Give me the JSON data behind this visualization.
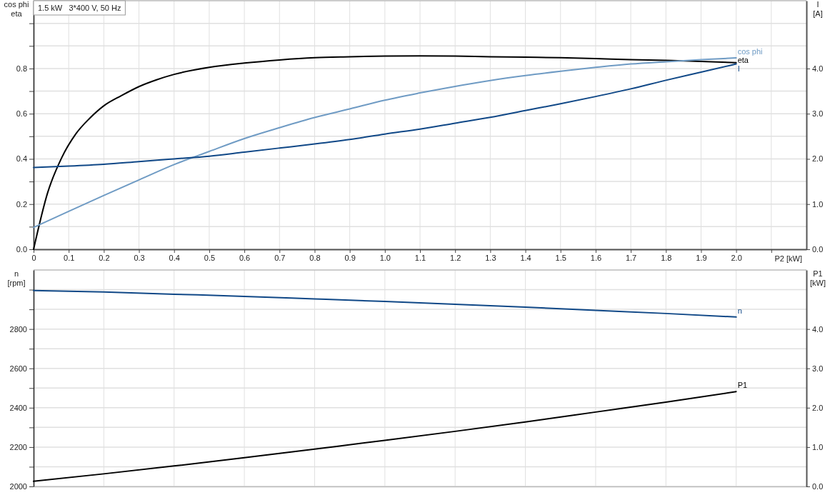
{
  "chart_data": [
    {
      "type": "line",
      "title": "1.5 kW   3*400 V, 50 Hz",
      "xlabel": "P2 [kW]",
      "ylabel": "cos phi\neta",
      "y2label": "I\n[A]",
      "xlim": [
        0,
        2.2
      ],
      "xticks": [
        0,
        0.1,
        0.2,
        0.3,
        0.4,
        0.5,
        0.6,
        0.7,
        0.8,
        0.9,
        {
          "value": 1,
          "label": "1.0"
        },
        1.1,
        1.2,
        1.3,
        1.4,
        1.5,
        1.6,
        1.7,
        1.8,
        1.9,
        {
          "value": 2,
          "label": "2.0"
        },
        {
          "value": 2.1,
          "label": null
        }
      ],
      "ylim": [
        0,
        1.1
      ],
      "yticks": [
        {
          "value": 0,
          "label": "0.0"
        },
        {
          "value": 0.1,
          "label": null
        },
        0.2,
        {
          "value": 0.3,
          "label": null
        },
        0.4,
        {
          "value": 0.5,
          "label": null
        },
        0.6,
        {
          "value": 0.7,
          "label": null
        },
        0.8,
        {
          "value": 0.9,
          "label": null
        },
        {
          "value": 1,
          "label": null
        }
      ],
      "y2lim": [
        0,
        5.5
      ],
      "y2ticks": [
        {
          "value": 0,
          "label": "0.0"
        },
        {
          "value": 1,
          "label": "1.0"
        },
        {
          "value": 2,
          "label": "2.0"
        },
        {
          "value": 3,
          "label": "3.0"
        },
        {
          "value": 4,
          "label": "4.0"
        }
      ],
      "grid": true,
      "series": [
        {
          "name": "eta",
          "color": "#000000",
          "x": [
            0,
            0.04,
            0.08,
            0.12,
            0.16,
            0.2,
            0.25,
            0.3,
            0.35,
            0.4,
            0.5,
            0.6,
            0.7,
            0.8,
            0.9,
            1.0,
            1.1,
            1.2,
            1.3,
            1.4,
            1.5,
            1.6,
            1.7,
            1.8,
            1.9,
            2.0
          ],
          "values": [
            0,
            0.25,
            0.405,
            0.51,
            0.58,
            0.635,
            0.68,
            0.72,
            0.75,
            0.774,
            0.805,
            0.824,
            0.838,
            0.848,
            0.852,
            0.855,
            0.856,
            0.855,
            0.852,
            0.85,
            0.848,
            0.844,
            0.839,
            0.836,
            0.831,
            0.826
          ]
        },
        {
          "name": "cos phi",
          "color": "#6f9bc4",
          "x": [
            0,
            0.1,
            0.2,
            0.3,
            0.4,
            0.5,
            0.6,
            0.7,
            0.8,
            0.9,
            1.0,
            1.1,
            1.2,
            1.3,
            1.4,
            1.5,
            1.6,
            1.7,
            1.8,
            1.9,
            2.0
          ],
          "values": [
            0.097,
            0.168,
            0.238,
            0.307,
            0.375,
            0.433,
            0.49,
            0.538,
            0.583,
            0.621,
            0.66,
            0.692,
            0.721,
            0.747,
            0.769,
            0.788,
            0.805,
            0.82,
            0.83,
            0.839,
            0.847
          ]
        },
        {
          "name": "I",
          "color": "#104887",
          "axis": "y2",
          "x": [
            0,
            0.1,
            0.2,
            0.3,
            0.4,
            0.5,
            0.6,
            0.7,
            0.8,
            0.9,
            1.0,
            1.1,
            1.2,
            1.3,
            1.4,
            1.5,
            1.6,
            1.7,
            1.8,
            1.9,
            2.0
          ],
          "values": [
            1.81,
            1.84,
            1.88,
            1.94,
            2.0,
            2.06,
            2.15,
            2.24,
            2.33,
            2.43,
            2.55,
            2.66,
            2.79,
            2.92,
            3.07,
            3.22,
            3.38,
            3.55,
            3.74,
            3.92,
            4.1
          ]
        }
      ]
    },
    {
      "type": "line",
      "ylabel": "n\n[rpm]",
      "y2label": "P1\n[kW]",
      "tick_labels": "y",
      "xlim": [
        0,
        2.2
      ],
      "xticks": [
        0.2,
        0.4,
        0.6,
        0.8,
        1.0,
        1.2,
        1.4,
        1.6,
        1.8,
        2.0
      ],
      "ylim": [
        2000,
        3100
      ],
      "yticks": [
        2000,
        {
          "value": 2100,
          "label": null
        },
        2200,
        {
          "value": 2300,
          "label": null
        },
        2400,
        {
          "value": 2500,
          "label": null
        },
        2600,
        {
          "value": 2700,
          "label": null
        },
        2800,
        {
          "value": 2900,
          "label": null
        },
        {
          "value": 3000,
          "label": null
        }
      ],
      "y2lim": [
        0,
        5.5
      ],
      "y2ticks": [
        {
          "value": 0,
          "label": "0.0"
        },
        {
          "value": 1,
          "label": "1.0"
        },
        {
          "value": 2,
          "label": "2.0"
        },
        {
          "value": 3,
          "label": "3.0"
        },
        {
          "value": 4,
          "label": "4.0"
        }
      ],
      "grid": true,
      "series": [
        {
          "name": "n",
          "color": "#104887",
          "x": [
            0,
            0.2,
            0.4,
            0.6,
            0.8,
            1.0,
            1.2,
            1.4,
            1.6,
            1.8,
            2.0
          ],
          "values": [
            2996,
            2988,
            2977,
            2966,
            2953,
            2940,
            2926,
            2911,
            2895,
            2879,
            2861
          ]
        },
        {
          "name": "P1",
          "color": "#000000",
          "axis": "y2",
          "x": [
            0,
            0.2,
            0.4,
            0.6,
            0.8,
            1.0,
            1.2,
            1.4,
            1.6,
            1.8,
            2.0
          ],
          "values": [
            0.13,
            0.32,
            0.52,
            0.73,
            0.95,
            1.17,
            1.4,
            1.64,
            1.89,
            2.14,
            2.41
          ]
        }
      ]
    }
  ]
}
